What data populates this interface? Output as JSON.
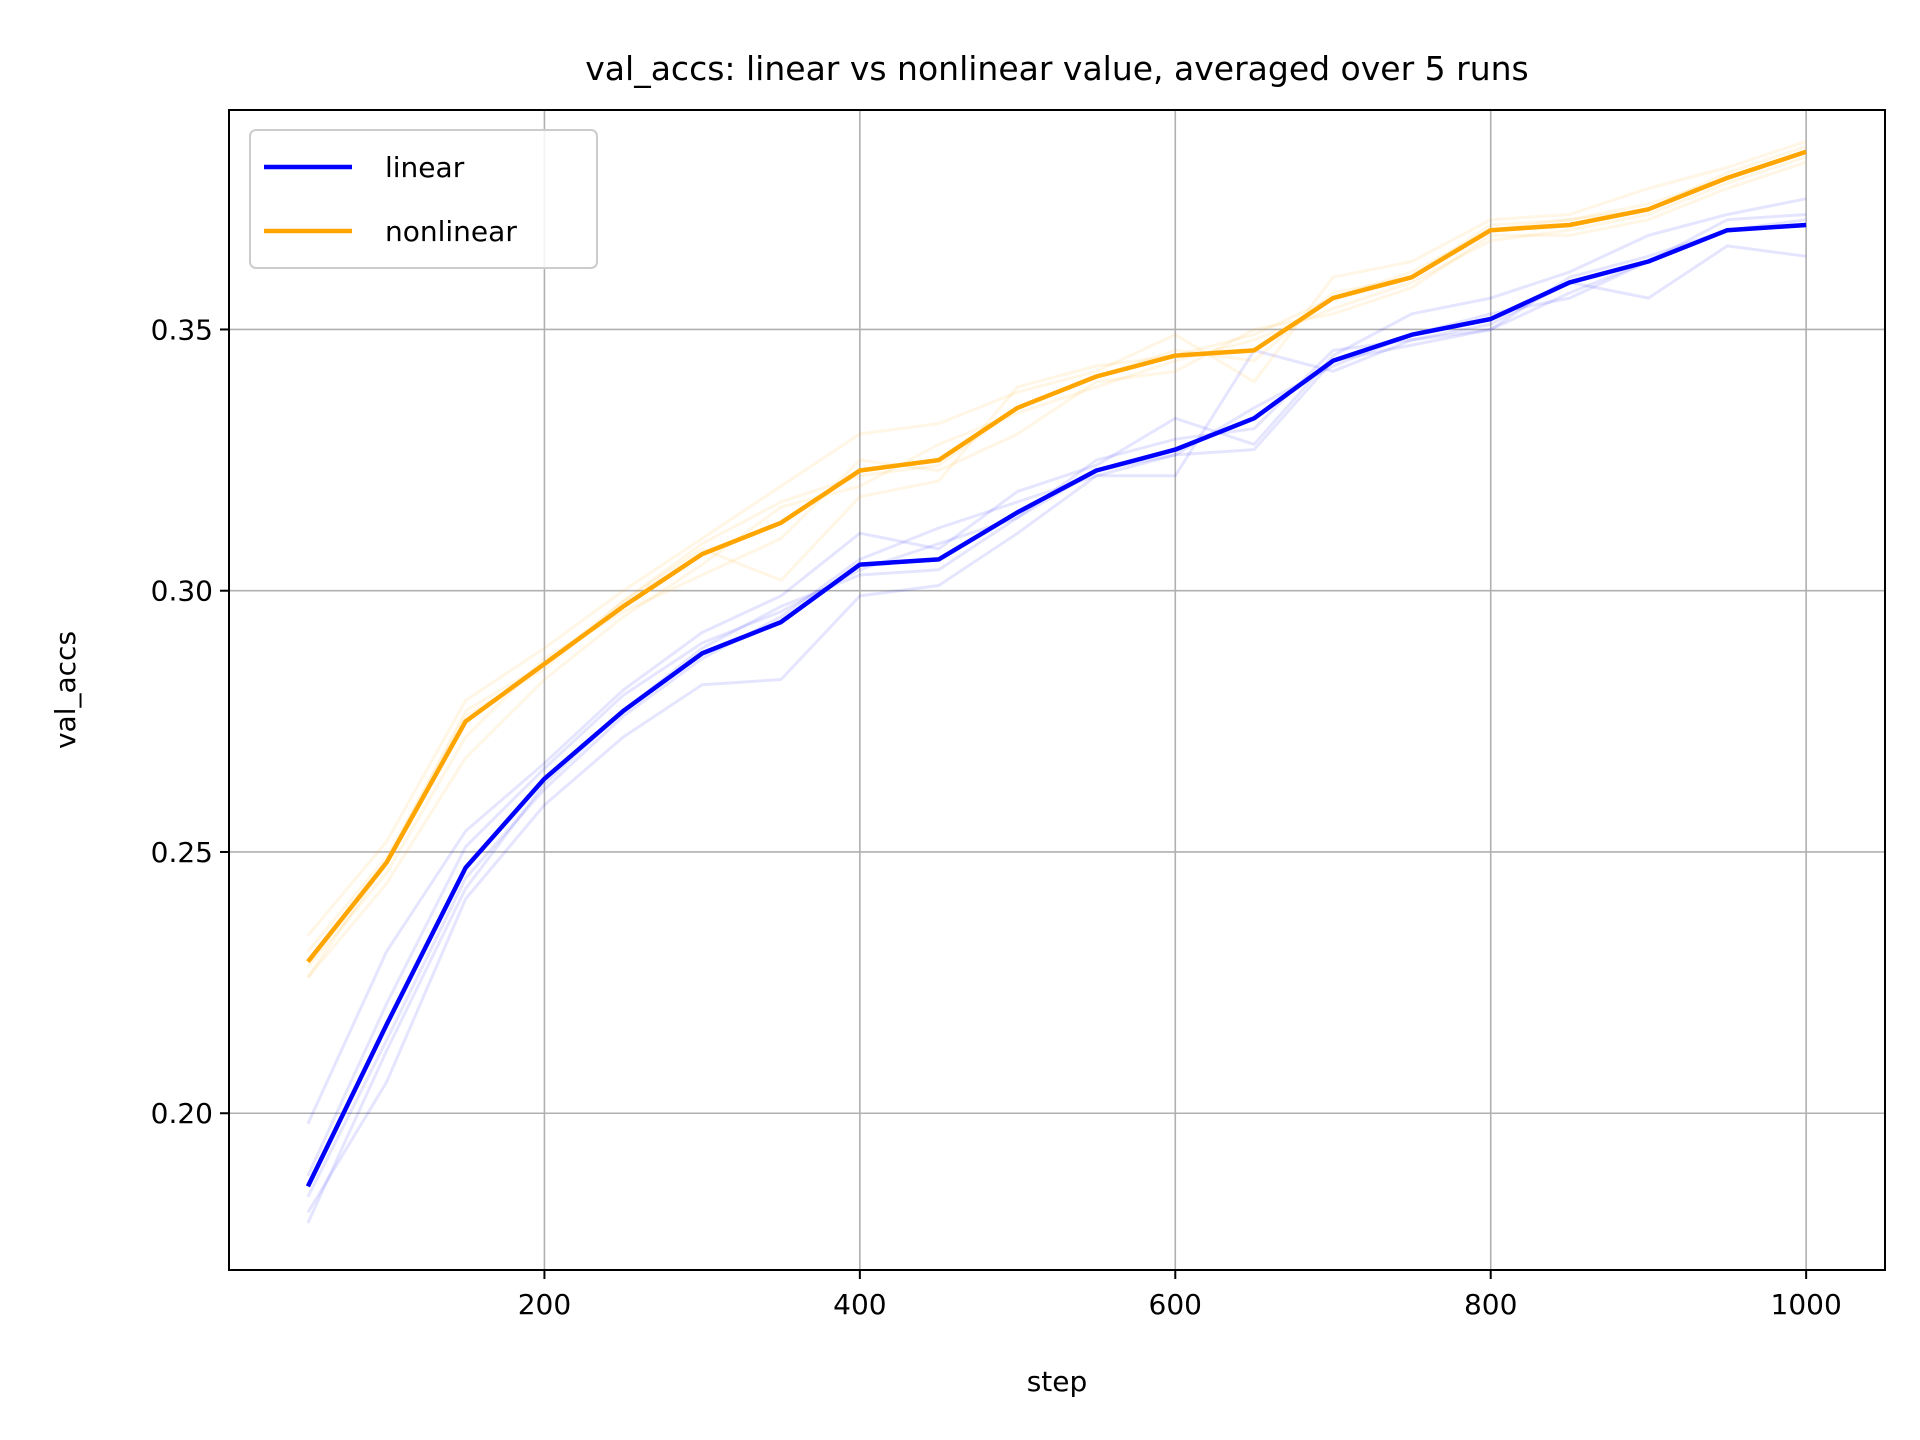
{
  "chart_data": {
    "type": "line",
    "title": "val_accs: linear vs nonlinear value, averaged over 5 runs",
    "xlabel": "step",
    "ylabel": "val_accs",
    "xlim": [
      0,
      1050
    ],
    "ylim": [
      0.17,
      0.392
    ],
    "xticks": [
      200,
      400,
      600,
      800,
      1000
    ],
    "xtick_labels": [
      "200",
      "400",
      "600",
      "800",
      "1000"
    ],
    "yticks": [
      0.2,
      0.25,
      0.3,
      0.35
    ],
    "ytick_labels": [
      "0.20",
      "0.25",
      "0.30",
      "0.35"
    ],
    "grid": true,
    "legend_position": "upper-left",
    "x": [
      50,
      100,
      150,
      200,
      250,
      300,
      350,
      400,
      450,
      500,
      550,
      600,
      650,
      700,
      750,
      800,
      850,
      900,
      950,
      1000
    ],
    "series": [
      {
        "name": "linear",
        "color": "#0000ff",
        "values": [
          0.186,
          0.217,
          0.247,
          0.264,
          0.277,
          0.288,
          0.294,
          0.305,
          0.306,
          0.315,
          0.323,
          0.327,
          0.333,
          0.344,
          0.349,
          0.352,
          0.359,
          0.363,
          0.369,
          0.37
        ],
        "runs": [
          [
            0.198,
            0.231,
            0.254,
            0.267,
            0.281,
            0.292,
            0.299,
            0.311,
            0.308,
            0.319,
            0.324,
            0.333,
            0.328,
            0.345,
            0.353,
            0.356,
            0.361,
            0.368,
            0.372,
            0.375
          ],
          [
            0.184,
            0.214,
            0.245,
            0.262,
            0.276,
            0.287,
            0.295,
            0.306,
            0.312,
            0.317,
            0.322,
            0.326,
            0.335,
            0.343,
            0.349,
            0.353,
            0.356,
            0.363,
            0.369,
            0.37
          ],
          [
            0.181,
            0.206,
            0.241,
            0.259,
            0.272,
            0.282,
            0.283,
            0.299,
            0.301,
            0.311,
            0.322,
            0.322,
            0.346,
            0.342,
            0.348,
            0.351,
            0.359,
            0.356,
            0.366,
            0.364
          ],
          [
            0.179,
            0.212,
            0.243,
            0.263,
            0.277,
            0.289,
            0.297,
            0.303,
            0.304,
            0.314,
            0.325,
            0.329,
            0.331,
            0.346,
            0.348,
            0.35,
            0.36,
            0.364,
            0.369,
            0.371
          ],
          [
            0.188,
            0.221,
            0.251,
            0.266,
            0.28,
            0.29,
            0.296,
            0.304,
            0.309,
            0.314,
            0.323,
            0.326,
            0.327,
            0.344,
            0.347,
            0.35,
            0.357,
            0.363,
            0.371,
            0.372
          ]
        ]
      },
      {
        "name": "nonlinear",
        "color": "#ffa500",
        "values": [
          0.229,
          0.248,
          0.275,
          0.286,
          0.297,
          0.307,
          0.313,
          0.323,
          0.325,
          0.335,
          0.341,
          0.345,
          0.346,
          0.356,
          0.36,
          0.369,
          0.37,
          0.373,
          0.379,
          0.384
        ],
        "runs": [
          [
            0.234,
            0.252,
            0.279,
            0.289,
            0.3,
            0.31,
            0.32,
            0.33,
            0.332,
            0.338,
            0.342,
            0.349,
            0.34,
            0.36,
            0.363,
            0.371,
            0.372,
            0.377,
            0.381,
            0.386
          ],
          [
            0.226,
            0.244,
            0.268,
            0.283,
            0.295,
            0.305,
            0.316,
            0.32,
            0.328,
            0.334,
            0.339,
            0.344,
            0.348,
            0.354,
            0.359,
            0.367,
            0.369,
            0.372,
            0.378,
            0.383
          ],
          [
            0.231,
            0.249,
            0.276,
            0.285,
            0.298,
            0.308,
            0.302,
            0.318,
            0.321,
            0.339,
            0.343,
            0.345,
            0.349,
            0.356,
            0.361,
            0.369,
            0.371,
            0.373,
            0.38,
            0.385
          ],
          [
            0.228,
            0.246,
            0.272,
            0.287,
            0.296,
            0.303,
            0.31,
            0.325,
            0.323,
            0.33,
            0.34,
            0.342,
            0.35,
            0.353,
            0.358,
            0.368,
            0.368,
            0.371,
            0.377,
            0.382
          ],
          [
            0.226,
            0.248,
            0.277,
            0.286,
            0.298,
            0.309,
            0.317,
            0.322,
            0.324,
            0.335,
            0.341,
            0.346,
            0.344,
            0.357,
            0.36,
            0.37,
            0.371,
            0.374,
            0.379,
            0.384
          ]
        ]
      }
    ]
  }
}
